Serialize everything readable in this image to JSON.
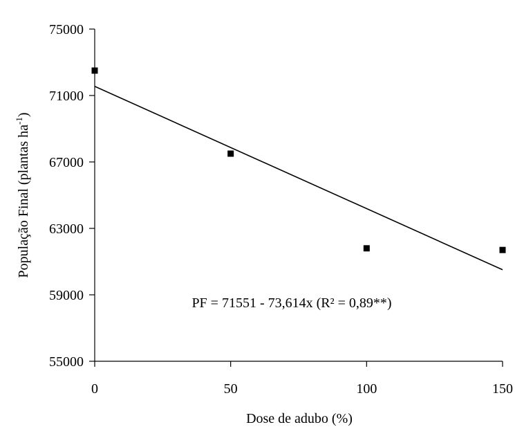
{
  "chart_data": {
    "type": "scatter",
    "x": [
      0,
      50,
      100,
      150
    ],
    "y": [
      72500,
      67500,
      61800,
      61700
    ],
    "xlabel": "Dose de adubo (%)",
    "ylabel_main": "População Final (plantas ha",
    "ylabel_sup": "-1",
    "ylabel_end": ")",
    "xticks": [
      0,
      50,
      100,
      150
    ],
    "xtick_labels": [
      "0",
      "50",
      "100",
      "150"
    ],
    "yticks": [
      55000,
      59000,
      63000,
      67000,
      71000,
      75000
    ],
    "ytick_labels": [
      "55000",
      "59000",
      "63000",
      "67000",
      "71000",
      "75000"
    ],
    "xlim": [
      0,
      150
    ],
    "ylim": [
      55000,
      75000
    ],
    "trendline": {
      "intercept": 71551,
      "slope": -73.614
    },
    "equation": "PF = 71551 - 73,614x (R² = 0,89**)",
    "grid": false,
    "legend": false,
    "colors": {
      "marker": "#000000",
      "line": "#000000"
    }
  }
}
